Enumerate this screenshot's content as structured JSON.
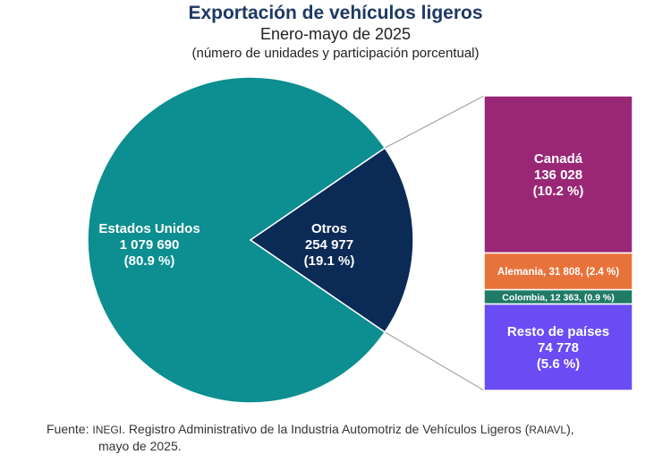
{
  "header": {
    "title": "Exportación de vehículos ligeros",
    "subtitle": "Enero-mayo de 2025",
    "units": "(número de unidades y participación porcentual)"
  },
  "chart_data": {
    "type": "pie-of-bar",
    "title": "Exportación de vehículos ligeros",
    "subtitle": "Enero-mayo de 2025",
    "units": "(número de unidades y participación porcentual)",
    "pie": [
      {
        "label": "Estados Unidos",
        "value_text": "1 079 690",
        "pct_text": "(80.9 %)",
        "value": 1079690,
        "percent": 80.9,
        "color": "#0d8e90"
      },
      {
        "label": "Otros",
        "value_text": "254 977",
        "pct_text": "(19.1 %)",
        "value": 254977,
        "percent": 19.1,
        "color": "#0c2a56"
      }
    ],
    "breakdown": [
      {
        "label": "Canadá",
        "value_text": "136 028",
        "pct_text": "(10.2 %)",
        "value": 136028,
        "percent": 10.2,
        "color": "#9a2776",
        "text_color": "#ffffff",
        "style": "stacked"
      },
      {
        "label": "Alemania",
        "value_text": "31 808",
        "pct_text": "(2.4 %)",
        "value": 31808,
        "percent": 2.4,
        "color": "#e8733a",
        "text_color": "#ffffff",
        "style": "inline"
      },
      {
        "label": "Colombia",
        "value_text": "12 363",
        "pct_text": "(0.9 %)",
        "value": 12363,
        "percent": 0.9,
        "color": "#1f7a66",
        "text_color": "#ffffff",
        "style": "inline"
      },
      {
        "label": "Resto de países",
        "value_text": "74 778",
        "pct_text": "(5.6 %)",
        "value": 74778,
        "percent": 5.6,
        "color": "#6a4cf5",
        "text_color": "#ffffff",
        "style": "stacked"
      }
    ],
    "connector_color": "#a6a6a6"
  },
  "source": {
    "prefix": "Fuente:",
    "institution": "INEGI",
    "text": ". Registro Administrativo de la Industria Automotriz de Vehículos Ligeros (",
    "acronym": "RAIAVL",
    "suffix": "),",
    "line2": "mayo de 2025."
  }
}
